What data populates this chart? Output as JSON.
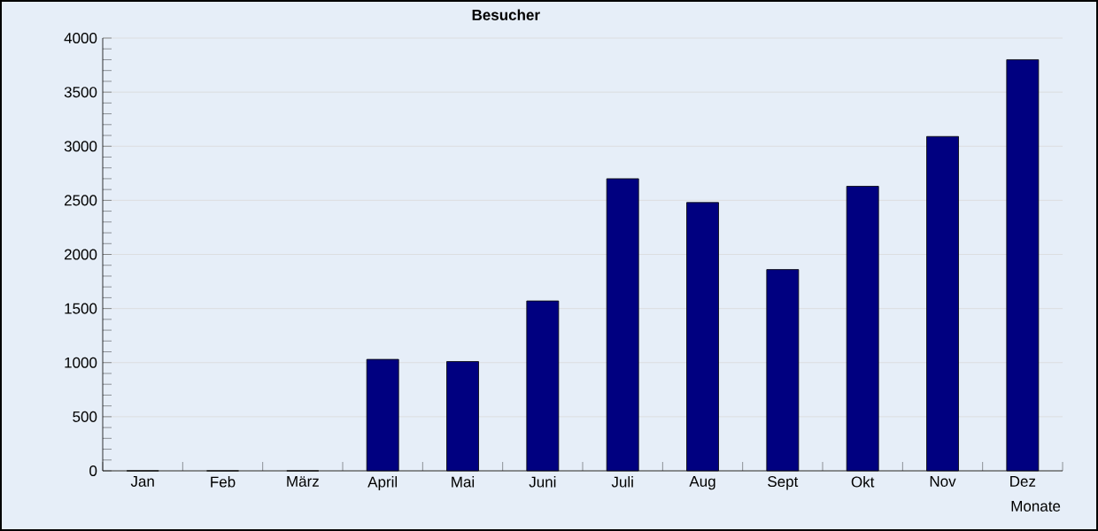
{
  "chart_data": {
    "type": "bar",
    "title": "Besucher",
    "xlabel": "Monate",
    "categories": [
      "Jan",
      "Feb",
      "März",
      "April",
      "Mai",
      "Juni",
      "Juli",
      "Aug",
      "Sept",
      "Okt",
      "Nov",
      "Dez"
    ],
    "values": [
      0,
      0,
      0,
      1030,
      1010,
      1570,
      2700,
      2480,
      1860,
      2630,
      3090,
      3800
    ],
    "color": "#000080",
    "ylim": [
      0,
      4000
    ],
    "yticks": [
      0,
      500,
      1000,
      1500,
      2000,
      2500,
      3000,
      3500,
      4000
    ],
    "grid": "y"
  }
}
